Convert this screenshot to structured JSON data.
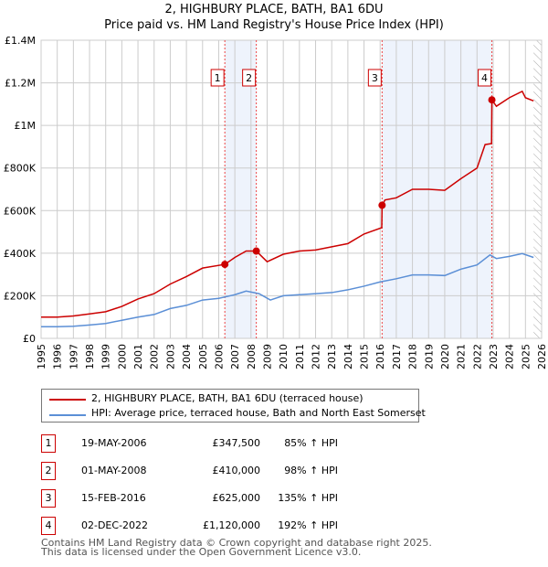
{
  "title": "2, HIGHBURY PLACE, BATH, BA1 6DU",
  "subtitle": "Price paid vs. HM Land Registry's House Price Index (HPI)",
  "legend": [
    "2, HIGHBURY PLACE, BATH, BA1 6DU (terraced house)",
    "HPI: Average price, terraced house, Bath and North East Somerset"
  ],
  "sales": [
    {
      "n": "1",
      "date": "19-MAY-2006",
      "price": "£347,500",
      "hpi": "85% ↑ HPI",
      "x": 2006.38,
      "y": 347500
    },
    {
      "n": "2",
      "date": "01-MAY-2008",
      "price": "£410,000",
      "hpi": "98% ↑ HPI",
      "x": 2008.33,
      "y": 410000
    },
    {
      "n": "3",
      "date": "15-FEB-2016",
      "price": "£625,000",
      "hpi": "135% ↑ HPI",
      "x": 2016.12,
      "y": 625000
    },
    {
      "n": "4",
      "date": "02-DEC-2022",
      "price": "£1,120,000",
      "hpi": "192% ↑ HPI",
      "x": 2022.92,
      "y": 1120000
    }
  ],
  "footer": [
    "Contains HM Land Registry data © Crown copyright and database right 2025.",
    "This data is licensed under the Open Government Licence v3.0."
  ],
  "chart_data": {
    "type": "line",
    "xlim": [
      1995,
      2026
    ],
    "ylim": [
      0,
      1400000
    ],
    "yticks": [
      0,
      200000,
      400000,
      600000,
      800000,
      1000000,
      1200000,
      1400000
    ],
    "ytick_labels": [
      "£0",
      "£200K",
      "£400K",
      "£600K",
      "£800K",
      "£1M",
      "£1.2M",
      "£1.4M"
    ],
    "xticks": [
      1995,
      1996,
      1997,
      1998,
      1999,
      2000,
      2001,
      2002,
      2003,
      2004,
      2005,
      2006,
      2007,
      2008,
      2009,
      2010,
      2011,
      2012,
      2013,
      2014,
      2015,
      2016,
      2017,
      2018,
      2019,
      2020,
      2021,
      2022,
      2023,
      2024,
      2025,
      2026
    ],
    "shaded": [
      [
        2006.38,
        2008.33
      ],
      [
        2016.12,
        2022.92
      ]
    ],
    "forecast_from": 2025.5,
    "series": [
      {
        "name": "property",
        "color": "#cc0000",
        "x": [
          1995,
          1996,
          1997,
          1998,
          1999,
          2000,
          2001,
          2002,
          2003,
          2004,
          2005,
          2006.38,
          2007,
          2007.7,
          2008.33,
          2009,
          2010,
          2011,
          2012,
          2013,
          2014,
          2015,
          2016.1,
          2016.12,
          2016.3,
          2017,
          2018,
          2019,
          2020,
          2021,
          2022,
          2022.5,
          2022.9,
          2022.92,
          2023.2,
          2024,
          2024.8,
          2025,
          2025.5
        ],
        "y": [
          100000,
          100000,
          105000,
          115000,
          125000,
          150000,
          185000,
          210000,
          255000,
          290000,
          330000,
          347500,
          380000,
          410000,
          410000,
          360000,
          395000,
          410000,
          415000,
          430000,
          445000,
          490000,
          520000,
          625000,
          650000,
          660000,
          700000,
          700000,
          695000,
          750000,
          800000,
          910000,
          915000,
          1120000,
          1090000,
          1130000,
          1160000,
          1130000,
          1115000
        ]
      },
      {
        "name": "hpi",
        "color": "#5b8fd6",
        "x": [
          1995,
          1996,
          1997,
          1998,
          1999,
          2000,
          2001,
          2002,
          2003,
          2004,
          2005,
          2006,
          2007,
          2007.7,
          2008.5,
          2009.2,
          2010,
          2011,
          2012,
          2013,
          2014,
          2015,
          2016,
          2017,
          2018,
          2019,
          2020,
          2021,
          2022,
          2022.8,
          2023.2,
          2024,
          2024.8,
          2025.5
        ],
        "y": [
          55000,
          55000,
          57000,
          63000,
          70000,
          85000,
          100000,
          112000,
          140000,
          155000,
          180000,
          188000,
          205000,
          222000,
          210000,
          180000,
          200000,
          205000,
          210000,
          215000,
          228000,
          245000,
          265000,
          280000,
          298000,
          298000,
          295000,
          325000,
          345000,
          392000,
          375000,
          385000,
          398000,
          380000
        ]
      }
    ]
  }
}
